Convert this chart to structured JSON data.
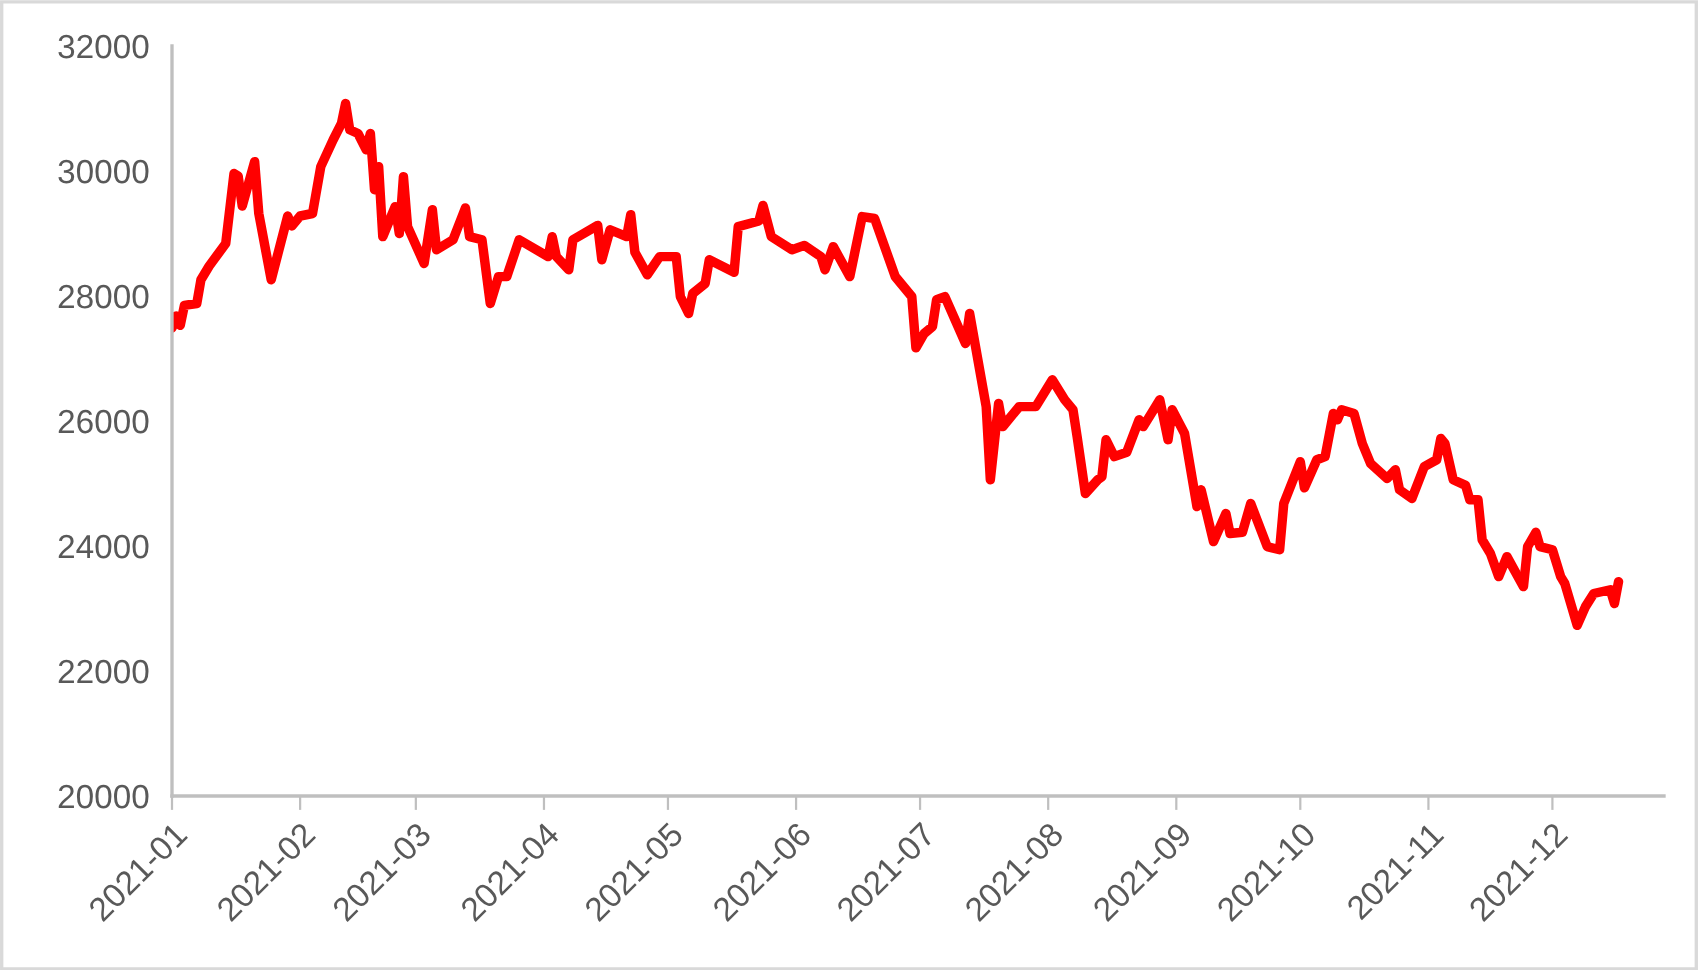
{
  "chart_data": {
    "type": "line",
    "x": [
      "2021-01-01",
      "2021-01-02",
      "2021-01-03",
      "2021-01-04",
      "2021-01-07",
      "2021-01-08",
      "2021-01-10",
      "2021-01-14",
      "2021-01-16",
      "2021-01-17",
      "2021-01-18",
      "2021-01-21",
      "2021-01-22",
      "2021-01-25",
      "2021-01-29",
      "2021-01-30",
      "2021-02-01",
      "2021-02-04",
      "2021-02-06",
      "2021-02-09",
      "2021-02-11",
      "2021-02-12",
      "2021-02-13",
      "2021-02-15",
      "2021-02-17",
      "2021-02-18",
      "2021-02-19",
      "2021-02-20",
      "2021-02-21",
      "2021-02-23",
      "2021-02-24",
      "2021-02-25",
      "2021-02-26",
      "2021-02-27",
      "2021-03-03",
      "2021-03-05",
      "2021-03-06",
      "2021-03-10",
      "2021-03-13",
      "2021-03-14",
      "2021-03-17",
      "2021-03-19",
      "2021-03-21",
      "2021-03-23",
      "2021-03-26",
      "2021-04-02",
      "2021-04-03",
      "2021-04-04",
      "2021-04-07",
      "2021-04-08",
      "2021-04-14",
      "2021-04-15",
      "2021-04-17",
      "2021-04-21",
      "2021-04-22",
      "2021-04-23",
      "2021-04-26",
      "2021-04-29",
      "2021-05-03",
      "2021-05-04",
      "2021-05-06",
      "2021-05-07",
      "2021-05-10",
      "2021-05-11",
      "2021-05-17",
      "2021-05-18",
      "2021-05-23",
      "2021-05-24",
      "2021-05-26",
      "2021-05-31",
      "2021-06-03",
      "2021-06-07",
      "2021-06-08",
      "2021-06-10",
      "2021-06-14",
      "2021-06-17",
      "2021-06-20",
      "2021-06-25",
      "2021-06-29",
      "2021-06-30",
      "2021-07-02",
      "2021-07-04",
      "2021-07-05",
      "2021-07-07",
      "2021-07-12",
      "2021-07-13",
      "2021-07-17",
      "2021-07-18",
      "2021-07-20",
      "2021-07-21",
      "2021-07-25",
      "2021-07-29",
      "2021-08-02",
      "2021-08-05",
      "2021-08-07",
      "2021-08-08",
      "2021-08-10",
      "2021-08-13",
      "2021-08-14",
      "2021-08-15",
      "2021-08-17",
      "2021-08-20",
      "2021-08-23",
      "2021-08-24",
      "2021-08-28",
      "2021-08-30",
      "2021-08-31",
      "2021-09-03",
      "2021-09-06",
      "2021-09-07",
      "2021-09-10",
      "2021-09-13",
      "2021-09-14",
      "2021-09-17",
      "2021-09-19",
      "2021-09-23",
      "2021-09-26",
      "2021-09-27",
      "2021-10-01",
      "2021-10-02",
      "2021-10-05",
      "2021-10-07",
      "2021-10-09",
      "2021-10-10",
      "2021-10-11",
      "2021-10-14",
      "2021-10-16",
      "2021-10-18",
      "2021-10-22",
      "2021-10-24",
      "2021-10-25",
      "2021-10-28",
      "2021-10-31",
      "2021-11-03",
      "2021-11-04",
      "2021-11-05",
      "2021-11-07",
      "2021-11-10",
      "2021-11-11",
      "2021-11-13",
      "2021-11-14",
      "2021-11-16",
      "2021-11-18",
      "2021-11-20",
      "2021-11-24",
      "2021-11-25",
      "2021-11-27",
      "2021-11-28",
      "2021-12-01",
      "2021-12-03",
      "2021-12-04",
      "2021-12-07",
      "2021-12-09",
      "2021-12-11",
      "2021-12-15",
      "2021-12-16",
      "2021-12-17"
    ],
    "series": [
      {
        "color": "#ff0000",
        "values": [
          27490,
          27680,
          27530,
          27850,
          27880,
          28260,
          28480,
          28840,
          29960,
          29920,
          29440,
          30150,
          29320,
          28260,
          29280,
          29120,
          29280,
          29320,
          30070,
          30500,
          30760,
          31080,
          30660,
          30600,
          30340,
          30600,
          29700,
          30070,
          28950,
          29270,
          29430,
          29000,
          29910,
          29110,
          28520,
          29380,
          28740,
          28900,
          29410,
          28950,
          28900,
          27880,
          28310,
          28310,
          28900,
          28630,
          28950,
          28630,
          28420,
          28900,
          29130,
          28580,
          29060,
          28950,
          29300,
          28700,
          28340,
          28630,
          28630,
          27990,
          27720,
          28040,
          28200,
          28580,
          28380,
          29110,
          29200,
          29450,
          28950,
          28740,
          28810,
          28630,
          28420,
          28790,
          28310,
          29270,
          29240,
          28310,
          27990,
          27170,
          27400,
          27510,
          27940,
          27990,
          27240,
          27720,
          26230,
          25060,
          26280,
          25910,
          26230,
          26230,
          26660,
          26340,
          26180,
          25750,
          24840,
          25060,
          25110,
          25700,
          25430,
          25500,
          26020,
          25910,
          26340,
          25700,
          26180,
          25800,
          24630,
          24900,
          24070,
          24520,
          24200,
          24220,
          24680,
          23990,
          23940,
          24680,
          25350,
          24930,
          25380,
          25430,
          26120,
          26020,
          26180,
          26120,
          25640,
          25320,
          25080,
          25220,
          24900,
          24760,
          25270,
          25380,
          25720,
          25640,
          25060,
          24970,
          24740,
          24740,
          24100,
          23880,
          23510,
          23830,
          23350,
          23990,
          24220,
          23990,
          23940,
          23510,
          23400,
          22730,
          23030,
          23240,
          23300,
          23080,
          23430
        ]
      }
    ],
    "xlim": [
      "2021-01-01",
      "2021-12-28"
    ],
    "xticks": [
      {
        "value": "2021-01-01",
        "label": "2021-01"
      },
      {
        "value": "2021-02-01",
        "label": "2021-02"
      },
      {
        "value": "2021-03-01",
        "label": "2021-03"
      },
      {
        "value": "2021-04-01",
        "label": "2021-04"
      },
      {
        "value": "2021-05-01",
        "label": "2021-05"
      },
      {
        "value": "2021-06-01",
        "label": "2021-06"
      },
      {
        "value": "2021-07-01",
        "label": "2021-07"
      },
      {
        "value": "2021-08-01",
        "label": "2021-08"
      },
      {
        "value": "2021-09-01",
        "label": "2021-09"
      },
      {
        "value": "2021-10-01",
        "label": "2021-10"
      },
      {
        "value": "2021-11-01",
        "label": "2021-11"
      },
      {
        "value": "2021-12-01",
        "label": "2021-12"
      }
    ],
    "ylim": [
      20000,
      32000
    ],
    "yticks": [
      20000,
      22000,
      24000,
      26000,
      28000,
      30000,
      32000
    ],
    "marker": "none",
    "line_style": "solid"
  }
}
